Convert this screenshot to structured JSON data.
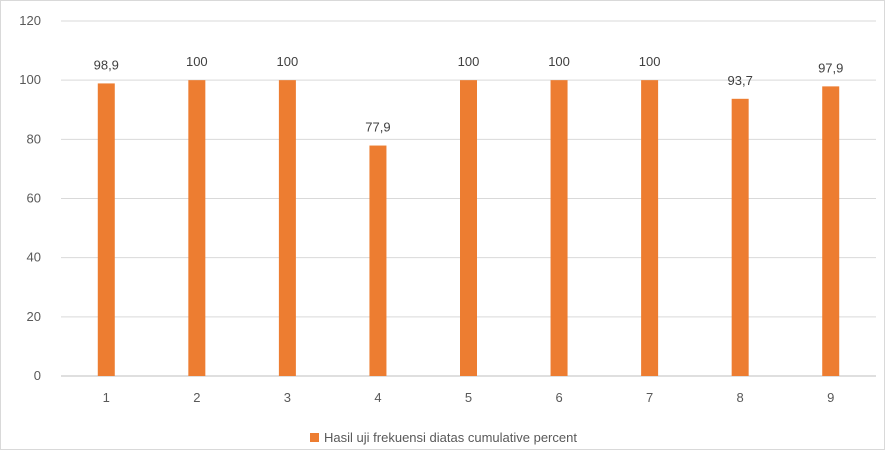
{
  "chart_data": {
    "type": "bar",
    "categories": [
      "1",
      "2",
      "3",
      "4",
      "5",
      "6",
      "7",
      "8",
      "9"
    ],
    "series": [
      {
        "name": "Hasil uji frekuensi diatas cumulative percent",
        "values": [
          98.9,
          100,
          100,
          77.9,
          100,
          100,
          100,
          93.7,
          97.9
        ],
        "data_labels": [
          "98,9",
          "100",
          "100",
          "77,9",
          "100",
          "100",
          "100",
          "93,7",
          "97,9"
        ]
      }
    ],
    "y_ticks": [
      "0",
      "20",
      "40",
      "60",
      "80",
      "100",
      "120"
    ],
    "ylim": [
      0,
      120
    ],
    "grid": true,
    "legend_position": "bottom",
    "colors": {
      "bar": "#ED7D31",
      "grid": "#d9d9d9",
      "text": "#595959"
    }
  }
}
